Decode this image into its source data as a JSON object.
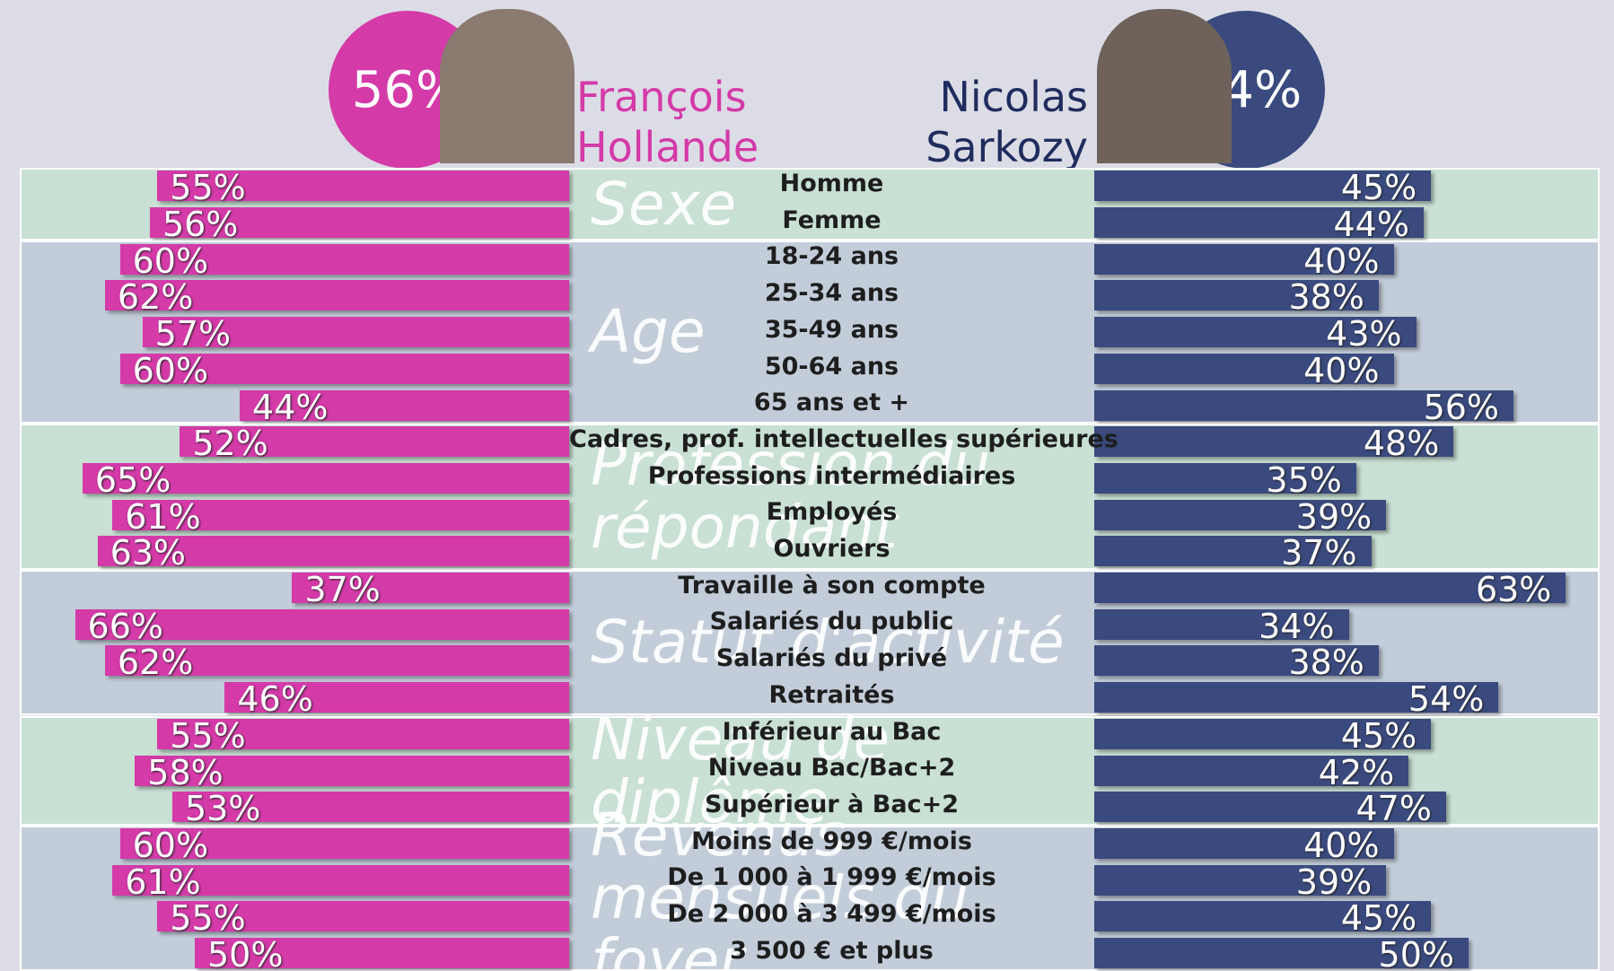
{
  "chart_data": {
    "type": "butterfly",
    "series": [
      {
        "name": "François Hollande",
        "color": "#d43aa8",
        "total": 56,
        "total_label": "56%",
        "values": [
          55,
          56,
          60,
          62,
          57,
          60,
          44,
          52,
          65,
          61,
          63,
          37,
          66,
          62,
          46,
          55,
          58,
          53,
          60,
          61,
          55,
          50
        ],
        "value_labels": [
          "55%",
          "56%",
          "60%",
          "62%",
          "57%",
          "60%",
          "44%",
          "52%",
          "65%",
          "61%",
          "63%",
          "37%",
          "66%",
          "62%",
          "46%",
          "55%",
          "58%",
          "53%",
          "60%",
          "61%",
          "55%",
          "50%"
        ]
      },
      {
        "name": "Nicolas Sarkozy",
        "color": "#3a4a7e",
        "total": 44,
        "total_label": "44%",
        "values": [
          45,
          44,
          40,
          38,
          43,
          40,
          56,
          48,
          35,
          39,
          37,
          63,
          34,
          38,
          54,
          45,
          42,
          47,
          40,
          39,
          45,
          50
        ],
        "value_labels": [
          "45%",
          "44%",
          "40%",
          "38%",
          "43%",
          "40%",
          "56%",
          "48%",
          "35%",
          "39%",
          "37%",
          "63%",
          "34%",
          "38%",
          "54%",
          "45%",
          "42%",
          "47%",
          "40%",
          "39%",
          "45%",
          "50%"
        ]
      }
    ],
    "groups": [
      {
        "label": "Sexe",
        "categories": [
          "Homme",
          "Femme"
        ]
      },
      {
        "label": "Age",
        "categories": [
          "18-24 ans",
          "25-34 ans",
          "35-49 ans",
          "50-64 ans",
          "65 ans et +"
        ]
      },
      {
        "label": "Profession du répondant",
        "categories": [
          "Cadres, prof. intellectuelles supérieures",
          "Professions intermédiaires",
          "Employés",
          "Ouvriers"
        ]
      },
      {
        "label": "Statut d'activité",
        "categories": [
          "Travaille à son compte",
          "Salariés du public",
          "Salariés du privé",
          "Retraités"
        ]
      },
      {
        "label": "Niveau de diplôme",
        "categories": [
          "Inférieur au Bac",
          "Niveau Bac/Bac+2",
          "Supérieur à Bac+2"
        ]
      },
      {
        "label": "Revenus mensuels du foyer",
        "categories": [
          "Moins de 999 €/mois",
          "De 1 000 à 1 999 €/mois",
          "De 2 000 à 3 499 €/mois",
          "3 500 € et plus"
        ]
      }
    ]
  }
}
